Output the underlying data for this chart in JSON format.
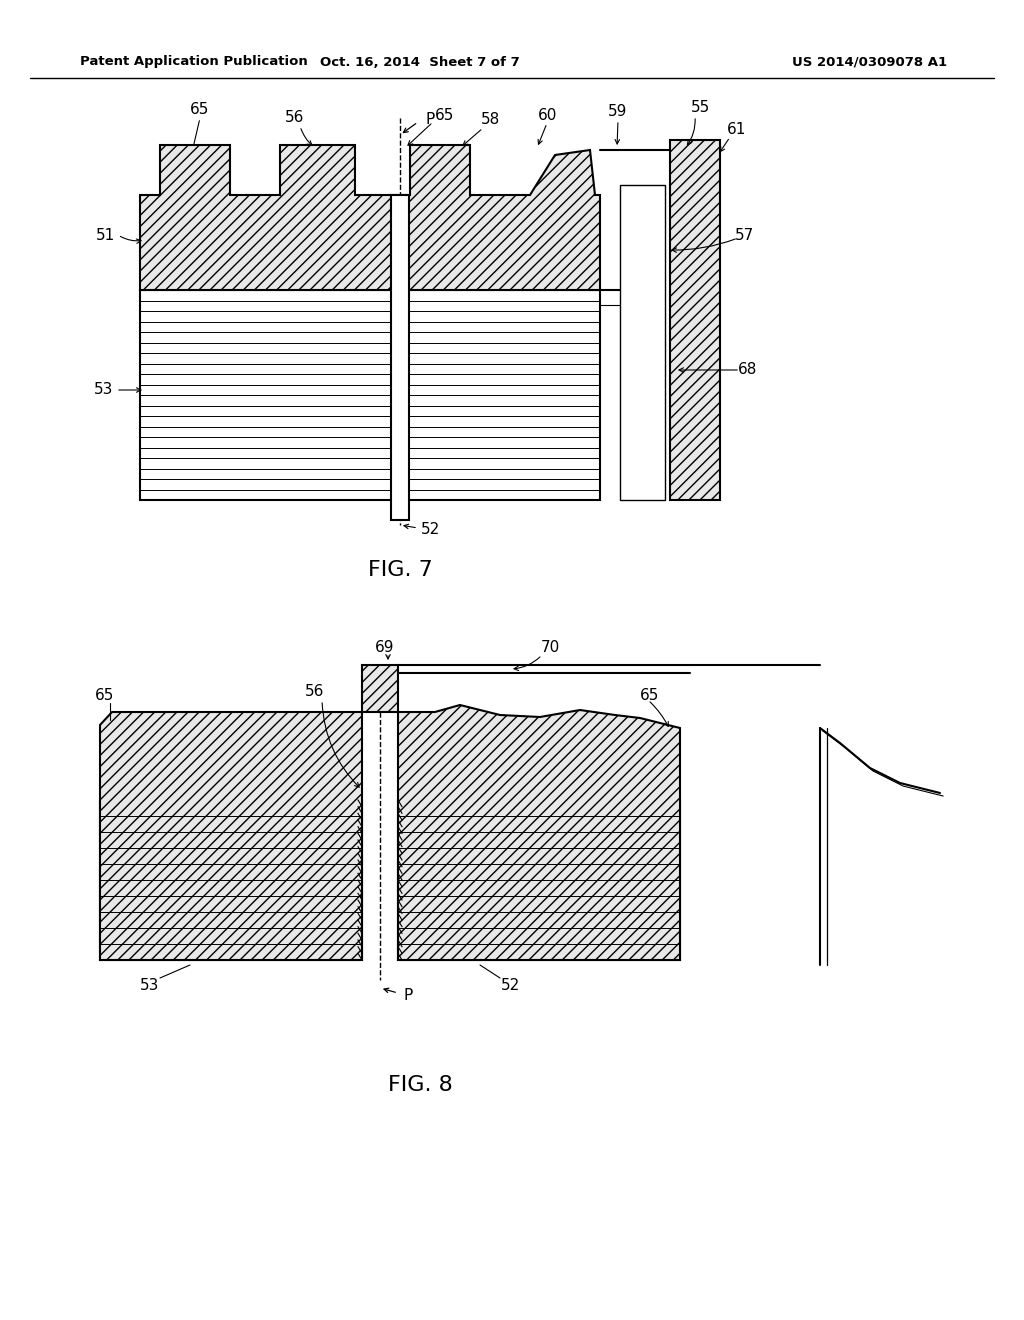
{
  "bg_color": "#ffffff",
  "line_color": "#000000",
  "header_left": "Patent Application Publication",
  "header_mid": "Oct. 16, 2014  Sheet 7 of 7",
  "header_right": "US 2014/0309078 A1",
  "fig7_label": "FIG. 7",
  "fig8_label": "FIG. 8"
}
